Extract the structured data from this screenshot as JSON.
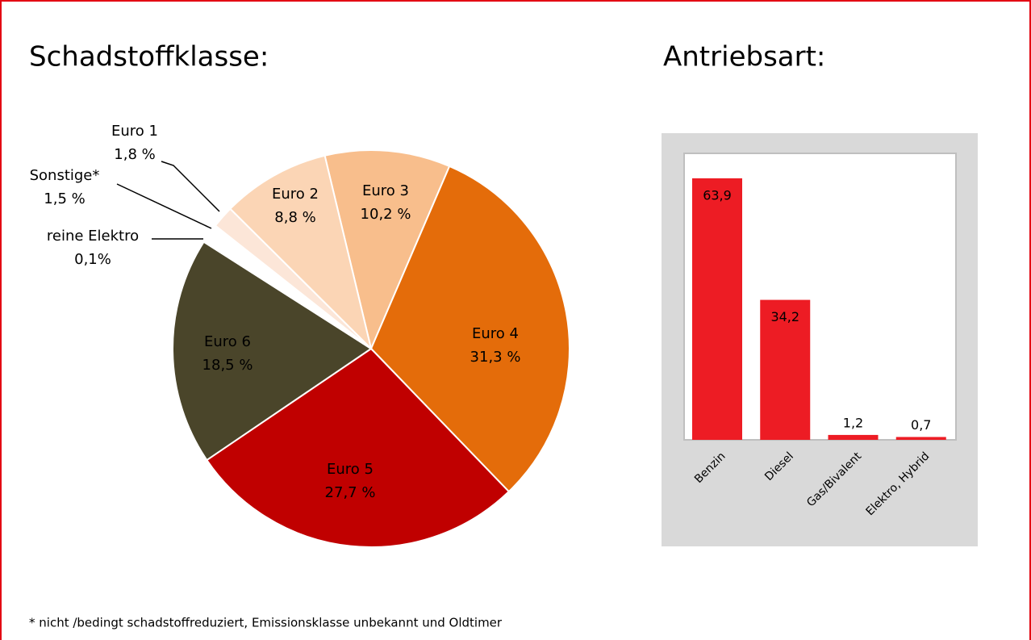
{
  "chart_data": [
    {
      "type": "pie",
      "title": "Schadstoffklasse:",
      "categories": [
        "Euro 3",
        "Euro 4",
        "Euro 5",
        "Euro 6",
        "reine Elektro",
        "Sonstige*",
        "Euro 1",
        "Euro 2"
      ],
      "values": [
        10.2,
        31.3,
        27.7,
        18.5,
        0.1,
        1.5,
        1.8,
        8.8
      ],
      "value_labels": [
        "10,2 %",
        "31,3 %",
        "27,7 %",
        "18,5 %",
        "0,1%",
        "1,5 %",
        "1,8 %",
        "8,8 %"
      ],
      "colors": [
        "#f8be8c",
        "#e46c0a",
        "#c00000",
        "#4a452a",
        "#2eaa5a",
        "#ffffff",
        "#fce6d8",
        "#fbd5b5"
      ]
    },
    {
      "type": "bar",
      "title": "Antriebsart:",
      "categories": [
        "Benzin",
        "Diesel",
        "Gas/Bivalent",
        "Elektro, Hybrid"
      ],
      "values": [
        63.9,
        34.2,
        1.2,
        0.7
      ],
      "value_labels": [
        "63,9",
        "34,2",
        "1,2",
        "0,7"
      ],
      "color": "#ed1c24",
      "ylim": [
        0,
        70
      ]
    }
  ],
  "footnote": "* nicht /bedingt schadstoffreduziert, Emissionsklasse unbekannt und Oldtimer"
}
